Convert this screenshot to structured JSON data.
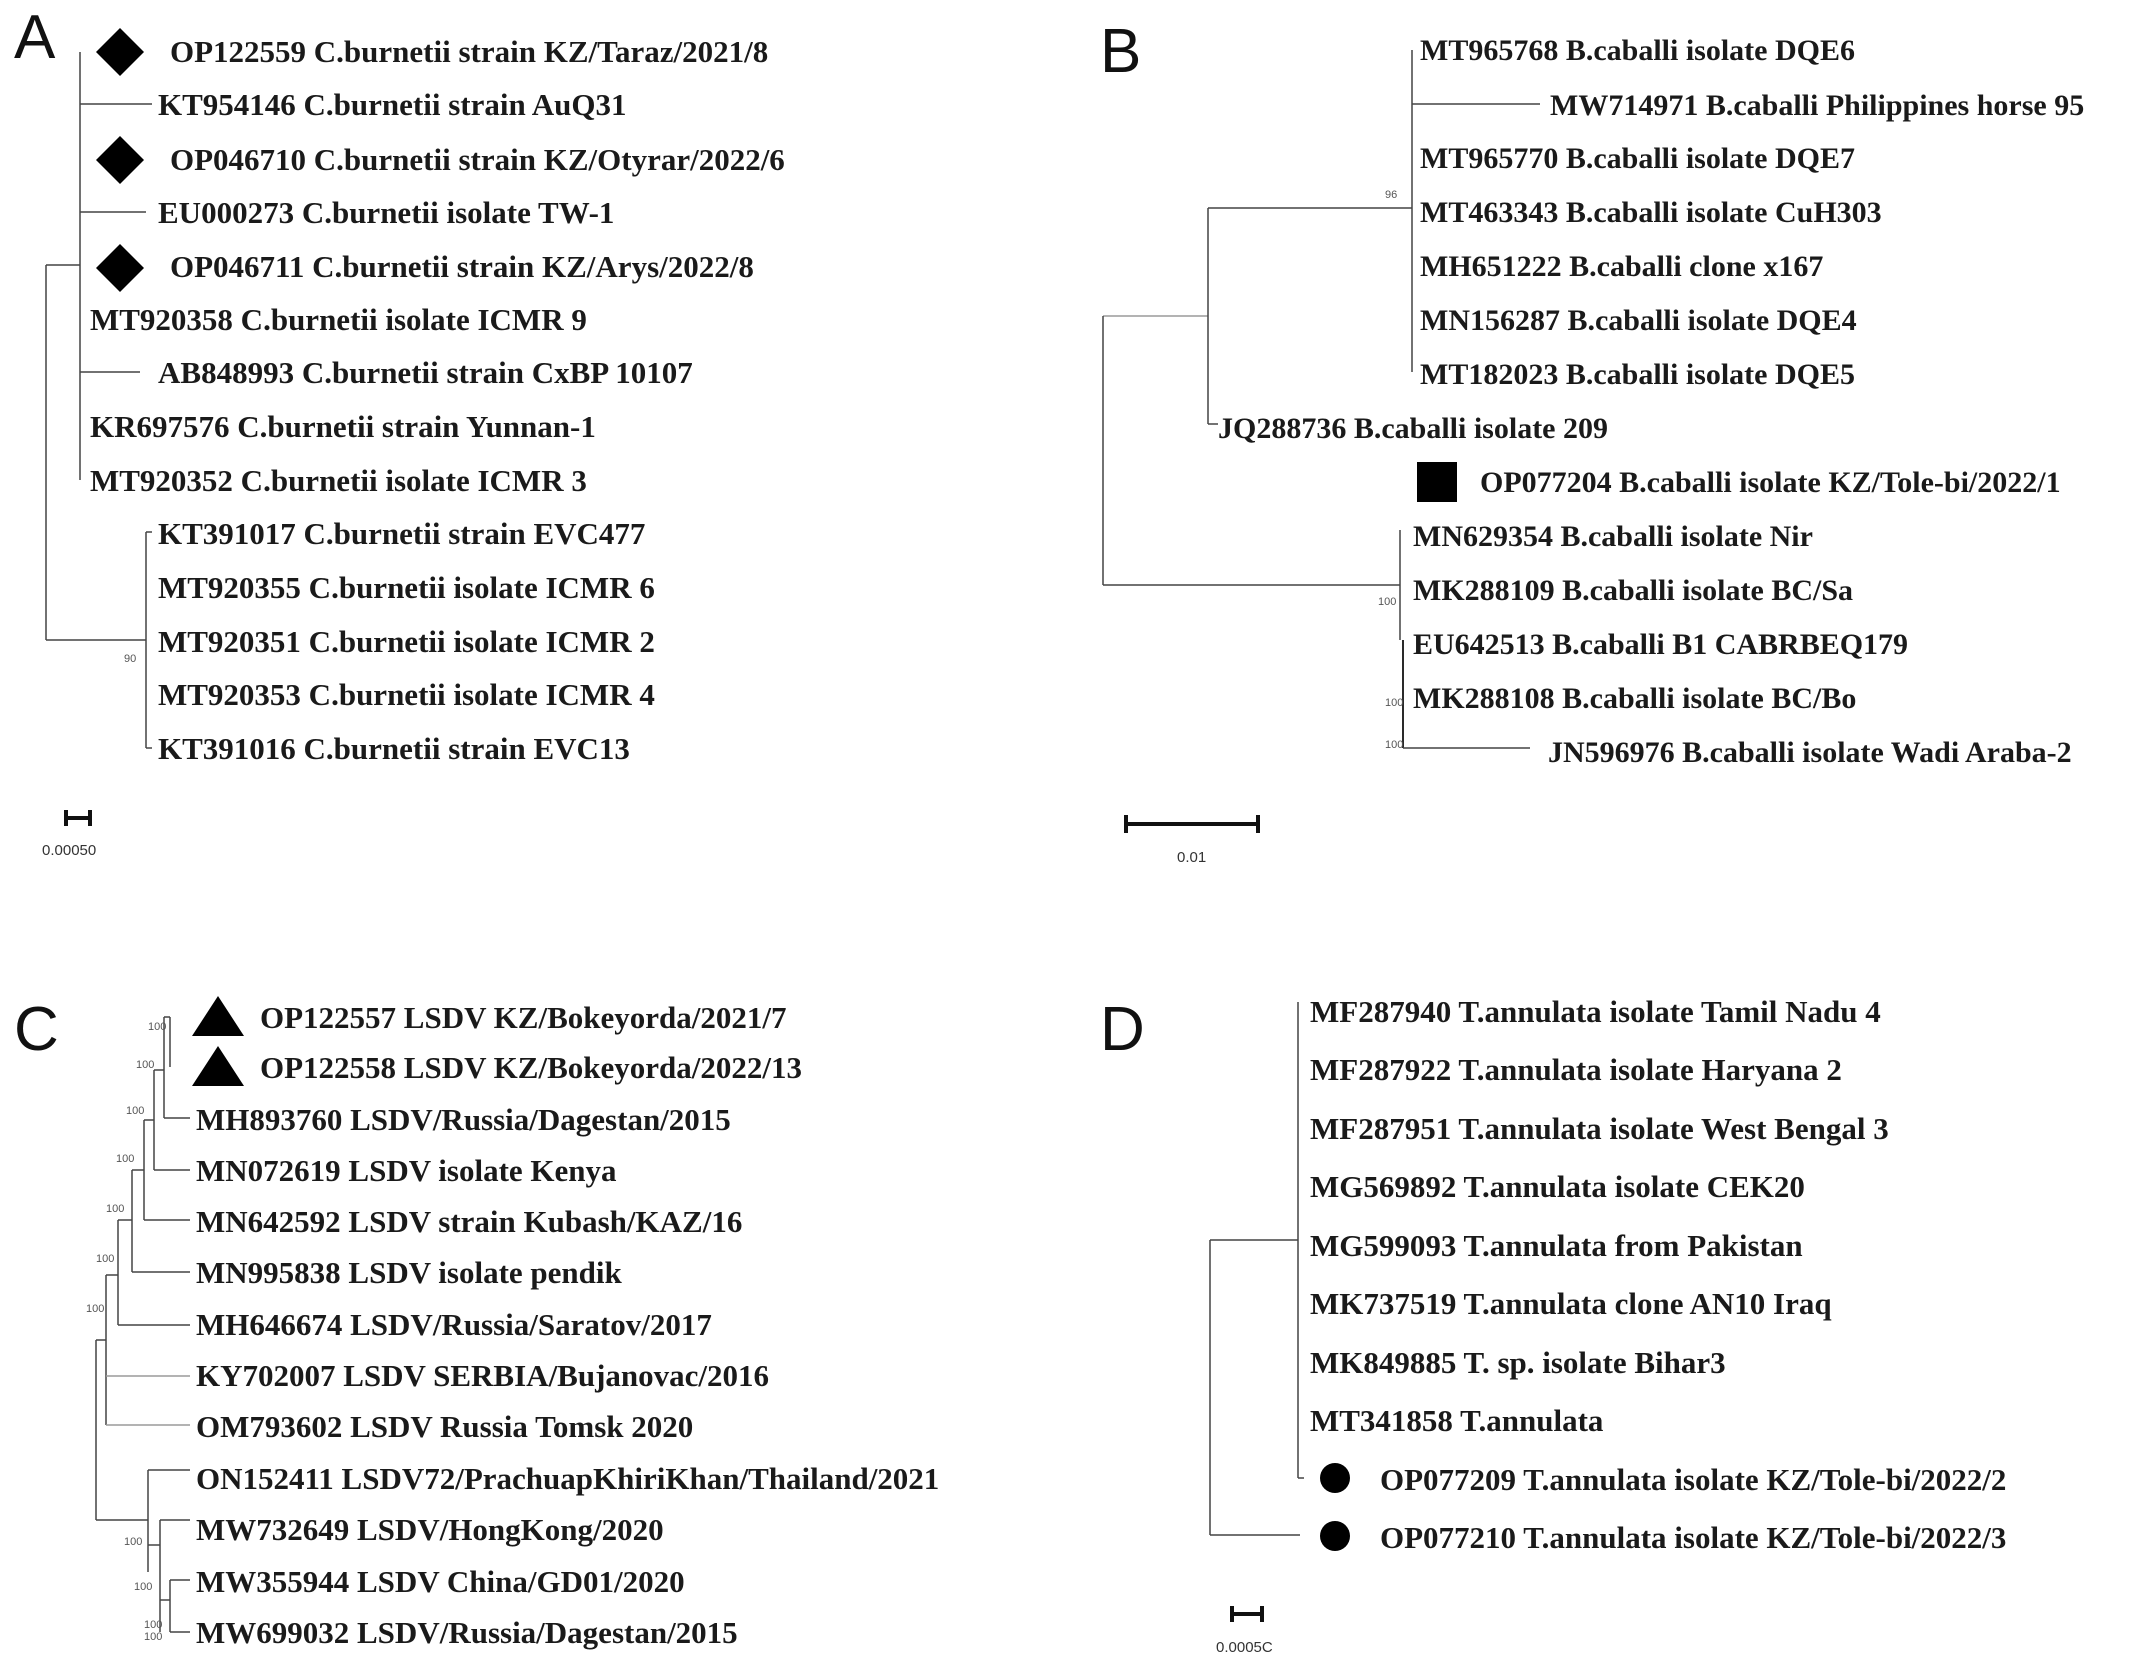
{
  "panels": {
    "A": {
      "letter": "A",
      "scale_label": "0.00050",
      "bootstrap": [
        "90"
      ],
      "leaves": [
        "OP122559 C.burnetii strain KZ/Taraz/2021/8",
        "KT954146 C.burnetii strain AuQ31",
        "OP046710 C.burnetii strain KZ/Otyrar/2022/6",
        "EU000273 C.burnetii isolate TW-1",
        "OP046711 C.burnetii strain KZ/Arys/2022/8",
        "MT920358 C.burnetii isolate ICMR 9",
        "AB848993 C.burnetii strain CxBP 10107",
        "KR697576 C.burnetii strain Yunnan-1",
        "MT920352 C.burnetii isolate ICMR 3",
        "KT391017 C.burnetii strain EVC477",
        "MT920355 C.burnetii isolate ICMR 6",
        "MT920351 C.burnetii isolate ICMR 2",
        "MT920353 C.burnetii isolate ICMR 4",
        "KT391016 C.burnetii strain EVC13"
      ],
      "marker": "diamond",
      "marked_leaves": [
        0,
        2,
        4
      ]
    },
    "B": {
      "letter": "B",
      "scale_label": "0.01",
      "bootstrap": [
        "96",
        "100",
        "100",
        "100"
      ],
      "leaves": [
        "MT965768 B.caballi isolate DQE6",
        "MW714971 B.caballi Philippines horse 95",
        "MT965770 B.caballi isolate DQE7",
        "MT463343 B.caballi isolate CuH303",
        "MH651222 B.caballi clone x167",
        "MN156287 B.caballi isolate DQE4",
        "MT182023 B.caballi isolate DQE5",
        "JQ288736 B.caballi isolate 209",
        "OP077204 B.caballi isolate KZ/Tole-bi/2022/1",
        "MN629354 B.caballi isolate Nir",
        "MK288109 B.caballi isolate BC/Sa",
        "EU642513 B.caballi B1 CABRBEQ179",
        "MK288108 B.caballi isolate BC/Bo",
        "JN596976 B.caballi isolate Wadi Araba-2"
      ],
      "marker": "square",
      "marked_leaves": [
        8
      ]
    },
    "C": {
      "letter": "C",
      "scale_label": "",
      "bootstrap": [
        "100",
        "100",
        "100",
        "100",
        "100",
        "100",
        "100",
        "100",
        "100",
        "100",
        "100"
      ],
      "leaves": [
        "OP122557 LSDV KZ/Bokeyorda/2021/7",
        "OP122558 LSDV KZ/Bokeyorda/2022/13",
        "MH893760 LSDV/Russia/Dagestan/2015",
        "MN072619 LSDV isolate Kenya",
        "MN642592 LSDV strain Kubash/KAZ/16",
        "MN995838 LSDV isolate pendik",
        "MH646674 LSDV/Russia/Saratov/2017",
        "KY702007 LSDV SERBIA/Bujanovac/2016",
        "OM793602 LSDV Russia Tomsk 2020",
        "ON152411 LSDV72/PrachuapKhiriKhan/Thailand/2021",
        "MW732649 LSDV/HongKong/2020",
        "MW355944 LSDV China/GD01/2020",
        "MW699032 LSDV/Russia/Dagestan/2015"
      ],
      "marker": "triangle",
      "marked_leaves": [
        0,
        1
      ]
    },
    "D": {
      "letter": "D",
      "scale_label": "0.0005C",
      "bootstrap": [],
      "leaves": [
        "MF287940 T.annulata isolate Tamil Nadu 4",
        "MF287922 T.annulata isolate Haryana 2",
        "MF287951 T.annulata isolate West Bengal 3",
        "MG569892 T.annulata isolate CEK20",
        "MG599093 T.annulata from Pakistan",
        "MK737519 T.annulata clone AN10 Iraq",
        "MK849885 T. sp. isolate Bihar3",
        "MT341858 T.annulata",
        "OP077209 T.annulata isolate KZ/Tole-bi/2022/2",
        "OP077210 T.annulata isolate KZ/Tole-bi/2022/3"
      ],
      "marker": "circle",
      "marked_leaves": [
        8,
        9
      ]
    }
  },
  "colors": {
    "branch": "#2a2a2a",
    "marker": "#000000",
    "text": "#1a1a1a"
  }
}
